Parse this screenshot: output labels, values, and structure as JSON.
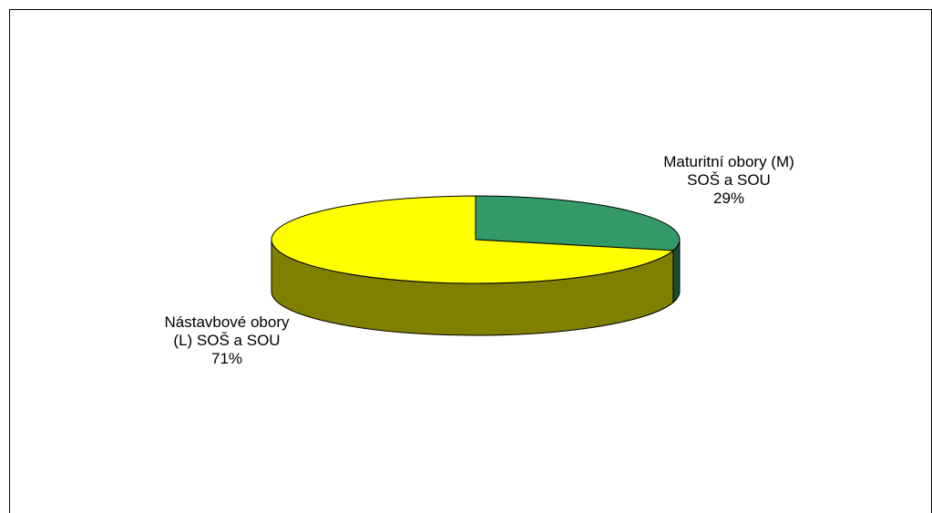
{
  "chart_data": {
    "type": "pie",
    "title": "",
    "three_d": true,
    "slices": [
      {
        "label_lines": [
          "Maturitní obory (M)",
          "SOŠ a SOU"
        ],
        "value": 29,
        "value_label": "29%",
        "color": "#339966",
        "side_color": "#1a4d33"
      },
      {
        "label_lines": [
          "Nástavbové obory",
          "(L) SOŠ a SOU"
        ],
        "value": 71,
        "value_label": "71%",
        "color": "#ffff00",
        "side_color": "#808000"
      }
    ]
  }
}
